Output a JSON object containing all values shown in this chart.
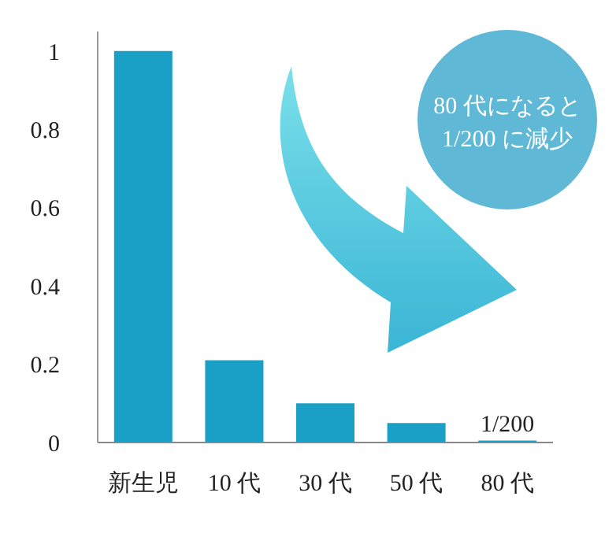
{
  "chart_data": {
    "type": "bar",
    "categories": [
      "新生児",
      "10 代",
      "30 代",
      "50 代",
      "80 代"
    ],
    "values": [
      1,
      0.21,
      0.1,
      0.05,
      0.005
    ],
    "color": "#1a9fc6",
    "value_labels": [
      null,
      null,
      null,
      null,
      "1/200"
    ],
    "ylim": [
      0,
      1.05
    ],
    "yticks": [
      0,
      0.2,
      0.4,
      0.6,
      0.8,
      1
    ],
    "grid": false,
    "annotations": [
      "80 代になると\n1/200 に減少"
    ]
  }
}
